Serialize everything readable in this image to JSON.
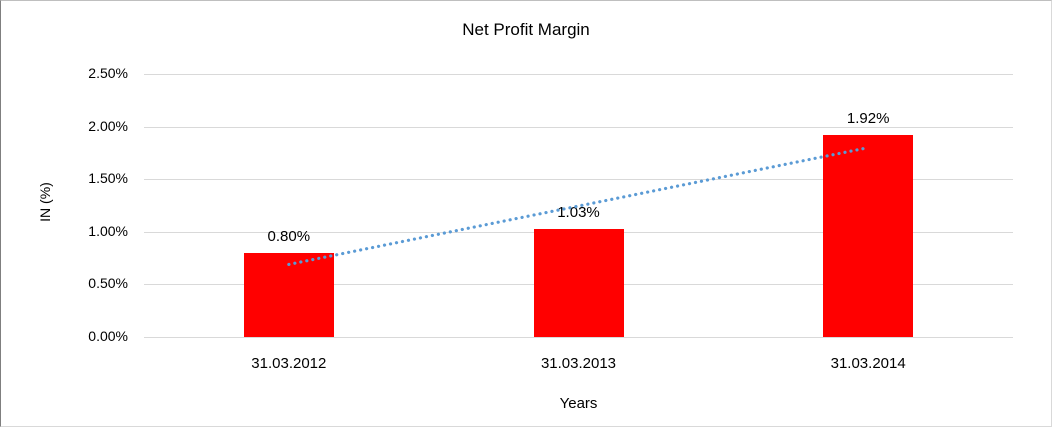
{
  "chart_data": {
    "type": "bar",
    "title": "Net Profit Margin",
    "categories": [
      "31.03.2012",
      "31.03.2013",
      "31.03.2014"
    ],
    "values": [
      0.8,
      1.03,
      1.92
    ],
    "data_labels": [
      "0.80%",
      "1.03%",
      "1.92%"
    ],
    "xlabel": "Years",
    "ylabel": "IN (%)",
    "ylim": [
      0,
      2.5
    ],
    "ytick_step": 0.5,
    "yticks": [
      "0.00%",
      "0.50%",
      "1.00%",
      "1.50%",
      "2.00%",
      "2.50%"
    ],
    "grid": true,
    "legend": "none",
    "bar_color": "#ff0000",
    "gridline_color": "#d9d9d9",
    "text_color": "#000000",
    "trendline": {
      "type": "linear",
      "style": "dotted",
      "color": "#5b9bd5",
      "from_value": 0.69,
      "to_value": 1.8
    }
  }
}
